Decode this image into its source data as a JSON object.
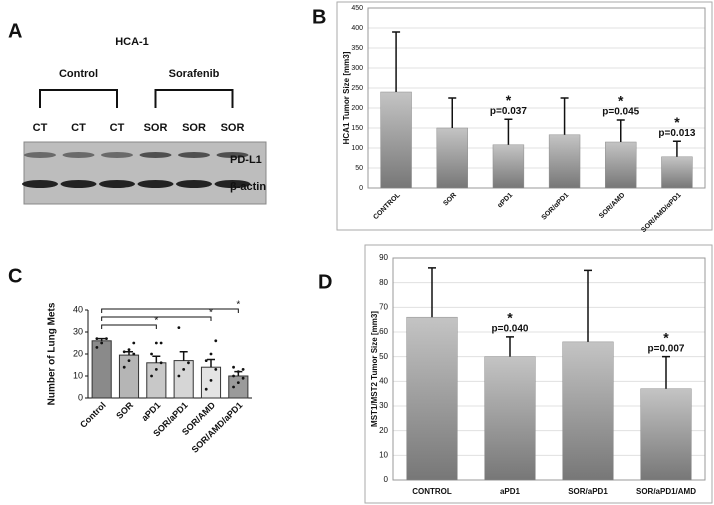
{
  "blot": {
    "panel": "A",
    "title": "HCA-1",
    "groups": [
      "Control",
      "Sorafenib"
    ],
    "lanes": [
      "CT",
      "CT",
      "CT",
      "SOR",
      "SOR",
      "SOR"
    ],
    "bands": [
      "PD-L1",
      "β-actin"
    ]
  },
  "chart_data": [
    {
      "type": "bar",
      "panel": "B",
      "ylabel": "HCA1 Tumor Size  [mm3]",
      "categories": [
        "CONTROL",
        "SOR",
        "αPD1",
        "SOR/αPD1",
        "SOR/AMD",
        "SOR/AMD/αPD1"
      ],
      "values": [
        240,
        150,
        108,
        133,
        115,
        78
      ],
      "errors": [
        150,
        75,
        64,
        92,
        55,
        39
      ],
      "stars": [
        null,
        null,
        "*",
        null,
        "*",
        "*"
      ],
      "p_labels": [
        null,
        null,
        "p=0.037",
        null,
        "p=0.045",
        "p=0.013"
      ],
      "ylim": [
        0,
        450
      ],
      "yticks": [
        0,
        50,
        100,
        150,
        200,
        250,
        300,
        350,
        400,
        450
      ],
      "color": "#8c8c8c"
    },
    {
      "type": "bar",
      "panel": "C",
      "ylabel": "Number of Lung Mets",
      "categories": [
        "Control",
        "SOR",
        "aPD1",
        "SOR/aPD1",
        "SOR/AMD",
        "SOR/AMD/aPD1"
      ],
      "values": [
        26,
        19.5,
        16,
        17,
        14,
        10
      ],
      "errors": [
        1,
        1.5,
        3,
        4,
        3.5,
        2
      ],
      "points": [
        [
          23,
          25,
          27,
          27
        ],
        [
          14,
          17,
          20,
          21,
          22,
          25
        ],
        [
          10,
          13,
          16,
          20,
          25,
          25
        ],
        [
          10,
          13,
          16,
          32
        ],
        [
          4,
          8,
          13,
          17,
          20,
          26
        ],
        [
          5,
          7,
          9,
          10,
          12,
          13,
          14
        ]
      ],
      "brackets": [
        {
          "from": "Control",
          "to": "aPD1",
          "label": "*"
        },
        {
          "from": "Control",
          "to": "SOR/AMD",
          "label": "*"
        },
        {
          "from": "Control",
          "to": "SOR/AMD/aPD1",
          "label": "*"
        }
      ],
      "bar_colors": [
        "#8a8a8a",
        "#b5b5b5",
        "#c8c8c8",
        "#d6d6d6",
        "#e4e4e4",
        "#9a9a9a"
      ],
      "ylim": [
        0,
        40
      ],
      "yticks": [
        0,
        10,
        20,
        30,
        40
      ]
    },
    {
      "type": "bar",
      "panel": "D",
      "ylabel": "MST1/MST2 Tumor Size  [mm3]",
      "categories": [
        "CONTROL",
        "aPD1",
        "SOR/aPD1",
        "SOR/aPD1/AMD"
      ],
      "values": [
        66,
        50,
        56,
        37
      ],
      "errors": [
        20,
        8,
        29,
        13
      ],
      "stars": [
        null,
        "*",
        null,
        "*"
      ],
      "p_labels": [
        null,
        "p=0.040",
        null,
        "p=0.007"
      ],
      "ylim": [
        0,
        90
      ],
      "yticks": [
        0,
        10,
        20,
        30,
        40,
        50,
        60,
        70,
        80,
        90
      ],
      "color": "#8c8c8c"
    }
  ]
}
